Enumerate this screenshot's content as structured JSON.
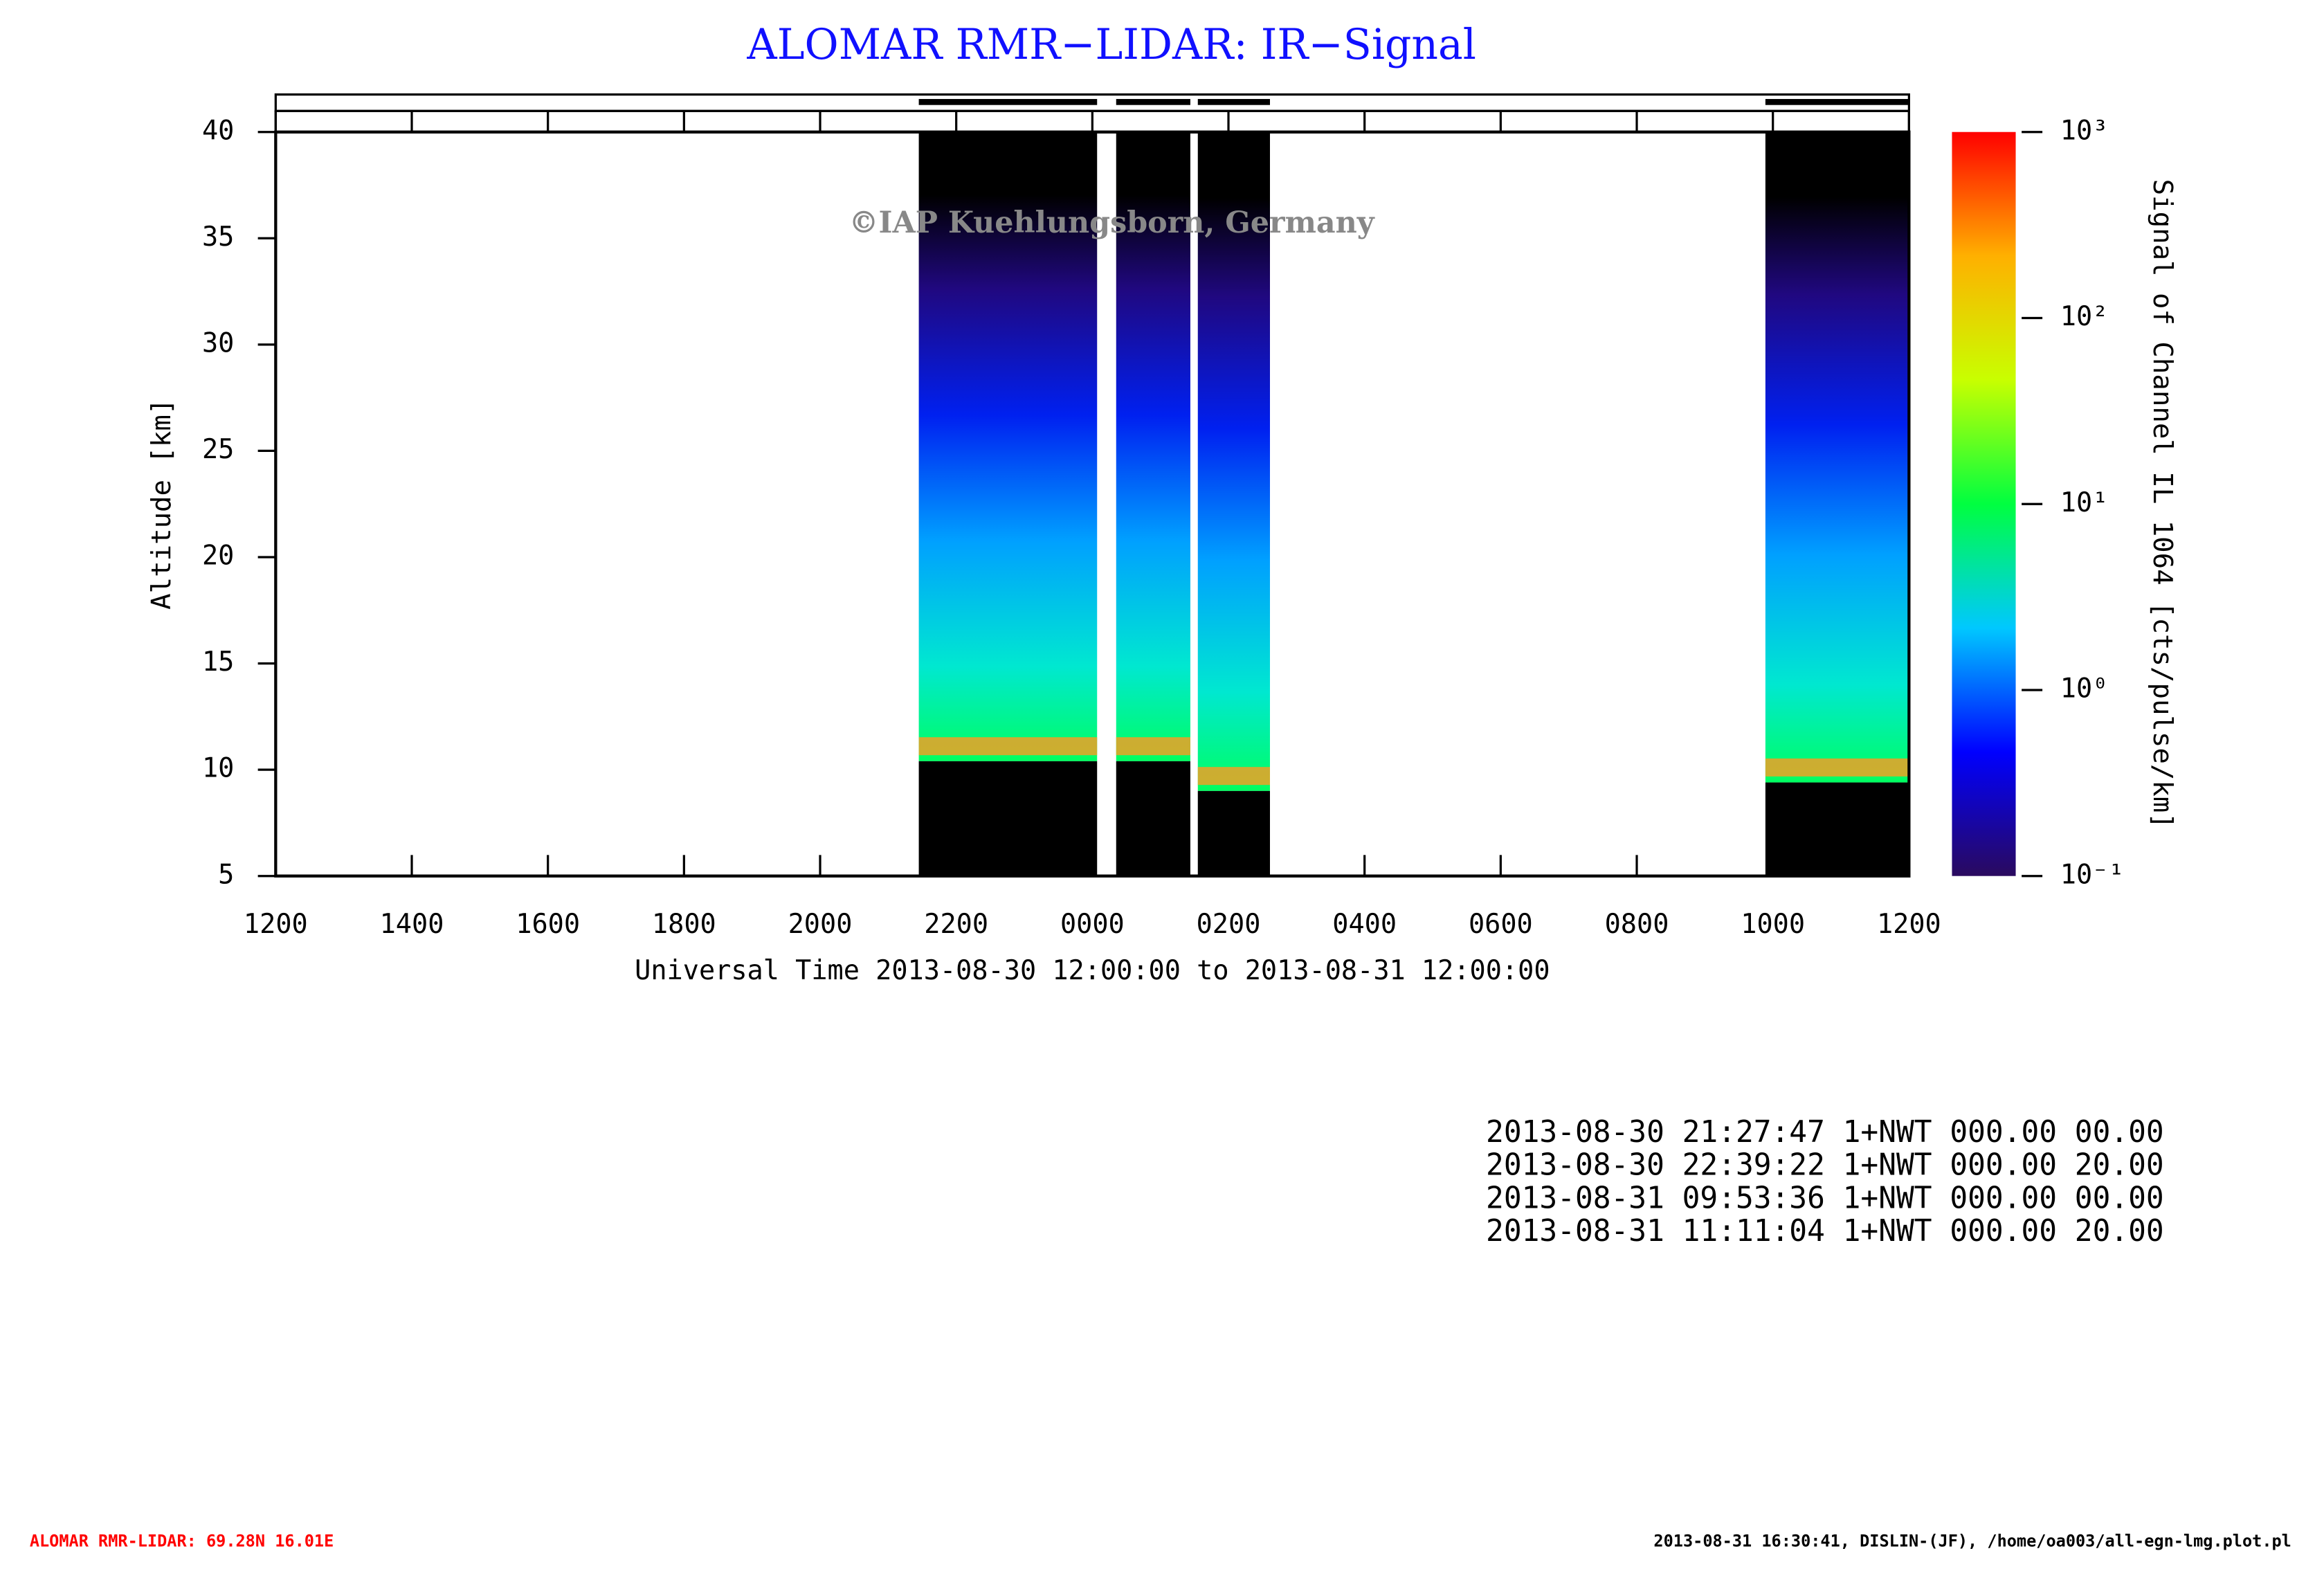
{
  "chart_data": {
    "type": "heatmap",
    "title": "ALOMAR RMR−LIDAR: IR−Signal",
    "watermark": "©IAP Kuehlungsborn, Germany",
    "xlabel": "Universal Time 2013-08-30 12:00:00 to 2013-08-31 12:00:00",
    "ylabel": "Altitude [km]",
    "xlim": [
      0,
      24
    ],
    "xticks": [
      {
        "value": 0,
        "label": "1200"
      },
      {
        "value": 2,
        "label": "1400"
      },
      {
        "value": 4,
        "label": "1600"
      },
      {
        "value": 6,
        "label": "1800"
      },
      {
        "value": 8,
        "label": "2000"
      },
      {
        "value": 10,
        "label": "2200"
      },
      {
        "value": 12,
        "label": "0000"
      },
      {
        "value": 14,
        "label": "0200"
      },
      {
        "value": 16,
        "label": "0400"
      },
      {
        "value": 18,
        "label": "0600"
      },
      {
        "value": 20,
        "label": "0800"
      },
      {
        "value": 22,
        "label": "1000"
      },
      {
        "value": 24,
        "label": "1200"
      }
    ],
    "ylim": [
      5,
      40
    ],
    "yticks": [
      5,
      10,
      15,
      20,
      25,
      30,
      35,
      40
    ],
    "colorbar": {
      "label": "Signal of Channel IL 1064 [cts/pulse/km]",
      "log": true,
      "lim": [
        0.1,
        1000
      ],
      "ticks": [
        {
          "value": 0.1,
          "label": "10⁻¹"
        },
        {
          "value": 1,
          "label": "10⁰"
        },
        {
          "value": 10,
          "label": "10¹"
        },
        {
          "value": 100,
          "label": "10²"
        },
        {
          "value": 1000,
          "label": "10³"
        }
      ],
      "colors": [
        "#2a0a5e",
        "#0000ff",
        "#00c8ff",
        "#00ff40",
        "#c8ff00",
        "#ffb000",
        "#ff0000"
      ]
    },
    "periods": [
      {
        "start": 9.45,
        "end": 12.07,
        "cloud_base": 10.4
      },
      {
        "start": 12.35,
        "end": 13.44,
        "cloud_base": 10.4
      },
      {
        "start": 13.55,
        "end": 14.61,
        "cloud_base": 9.0
      },
      {
        "start": 21.89,
        "end": 24,
        "cloud_base": 9.4
      }
    ],
    "log_records": [
      "2013-08-30 21:27:47 1+NWT 000.00 00.00",
      "2013-08-30 22:39:22 1+NWT 000.00 20.00",
      "2013-08-31 09:53:36 1+NWT 000.00 00.00",
      "2013-08-31 11:11:04 1+NWT 000.00 20.00"
    ],
    "footer_left": "ALOMAR RMR-LIDAR: 69.28N 16.01E",
    "footer_right": "2013-08-31 16:30:41, DISLIN-(JF), /home/oa003/all-egn-lmg.plot.pl"
  }
}
